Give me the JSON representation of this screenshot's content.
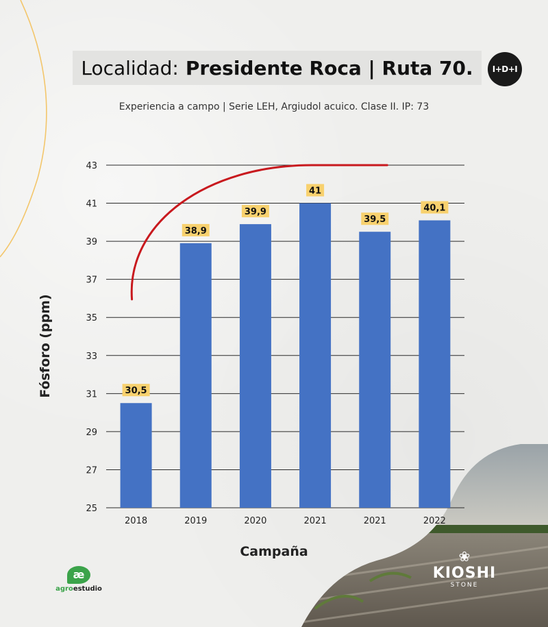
{
  "header": {
    "title_prefix": "Localidad:",
    "title_bold": "Presidente Roca | Ruta 70.",
    "badge": "I+D+I",
    "subtitle": "Experiencia a campo |  Serie LEH, Argiudol acuico. Clase II. IP: 73"
  },
  "chart_data": {
    "type": "bar",
    "categories": [
      "2018",
      "2019",
      "2020",
      "2021",
      "2021",
      "2022"
    ],
    "values": [
      30.5,
      38.9,
      39.9,
      41,
      39.5,
      40.1
    ],
    "value_labels": [
      "30,5",
      "38,9",
      "39,9",
      "41",
      "39,5",
      "40,1"
    ],
    "xlabel": "Campaña",
    "ylabel": "Fósforo (ppm)",
    "ylim": [
      25,
      43
    ],
    "yticks": [
      25,
      27,
      29,
      31,
      33,
      35,
      37,
      39,
      41,
      43
    ],
    "grid": true,
    "bar_color": "#4472c4",
    "label_bg": "#f8d16e",
    "trend_color": "#c8191e"
  },
  "logos": {
    "agro_mark": "æ",
    "agro_prefix": "agro",
    "agro_suffix": "estudio",
    "kioshi_icon": "lotus-icon",
    "kioshi_name": "KIOSHI",
    "kioshi_sub": "STONE"
  }
}
